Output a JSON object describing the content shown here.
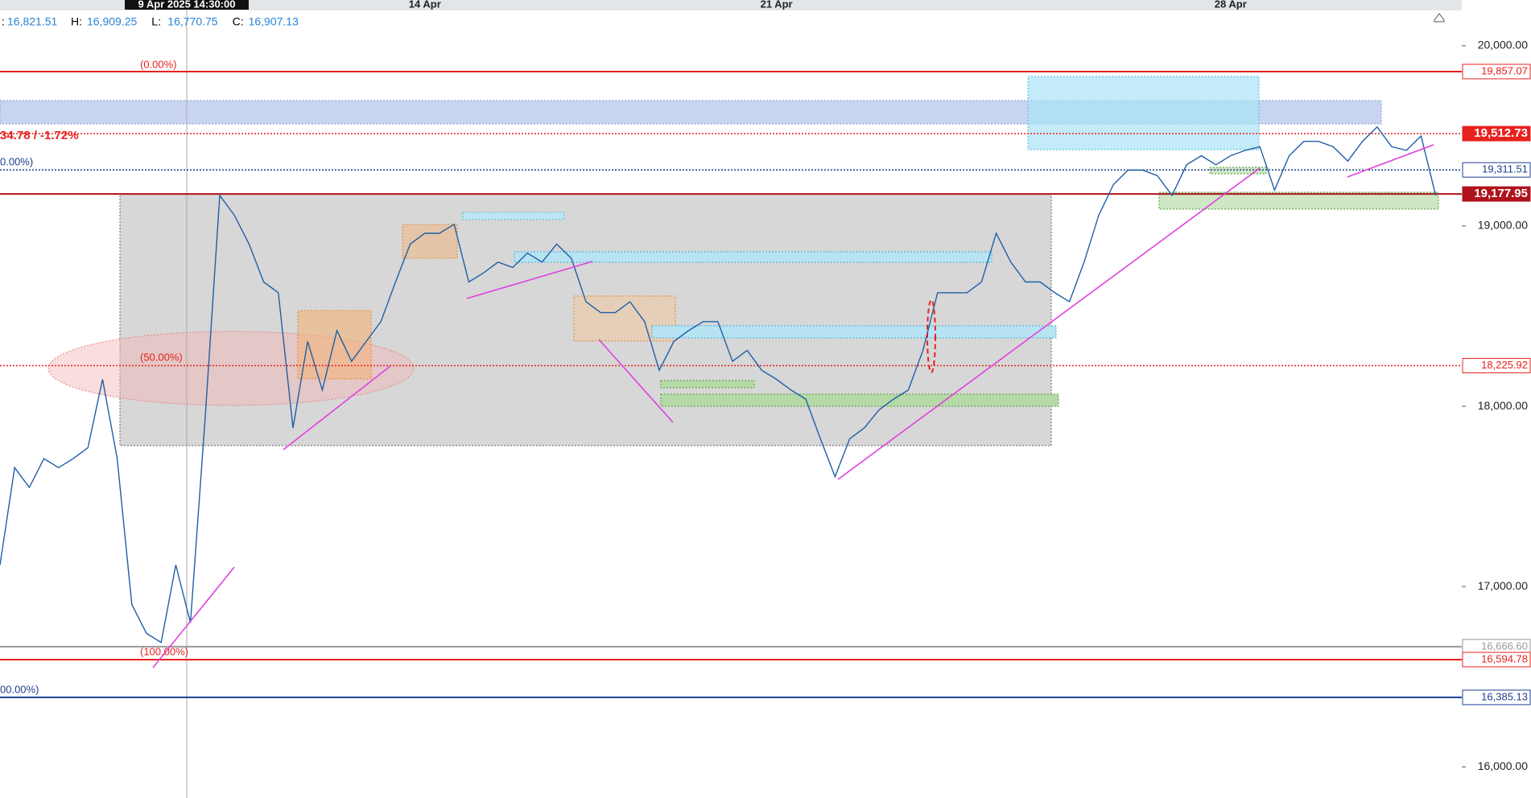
{
  "chart_data": {
    "type": "line",
    "crosshair_date": "9 Apr 2025 14:30:00",
    "ohlc": [
      {
        "label": "H:",
        "value": "16,909.25"
      },
      {
        "label": "L:",
        "value": "16,770.75"
      },
      {
        "label": "C:",
        "value": "16,907.13"
      }
    ],
    "open_value": "16,821.51",
    "categories": [
      null,
      null,
      null,
      null,
      null,
      null,
      null,
      null,
      null,
      null,
      null,
      null,
      null,
      null,
      null,
      null,
      null,
      null,
      null,
      null,
      null,
      null,
      null,
      null,
      null,
      null,
      null,
      null,
      null,
      "14 Apr",
      null,
      null,
      null,
      null,
      null,
      null,
      null,
      null,
      null,
      null,
      null,
      null,
      null,
      null,
      null,
      null,
      null,
      null,
      null,
      null,
      null,
      null,
      null,
      "21 Apr",
      null,
      null,
      null,
      null,
      null,
      null,
      null,
      null,
      null,
      null,
      null,
      null,
      null,
      null,
      null,
      null,
      null,
      null,
      null,
      null,
      null,
      null,
      null,
      null,
      null,
      null,
      null,
      null,
      null,
      null,
      "28 Apr",
      null,
      null,
      null,
      null,
      null,
      null,
      null,
      null,
      null,
      null,
      null,
      null,
      null,
      null
    ],
    "series": [
      {
        "color": "#1f5fa6",
        "values": [
          17120,
          17660,
          17550,
          17710,
          17660,
          17710,
          17770,
          18150,
          17710,
          16900,
          16740,
          16690,
          17120,
          16800,
          17930,
          19170,
          19060,
          18900,
          18690,
          18630,
          17880,
          18360,
          18090,
          18420,
          18250,
          18360,
          18470,
          18690,
          18900,
          18960,
          18960,
          19010,
          18690,
          18740,
          18800,
          18770,
          18850,
          18800,
          18900,
          18820,
          18580,
          18520,
          18520,
          18580,
          18470,
          18200,
          18360,
          18420,
          18470,
          18470,
          18250,
          18310,
          18200,
          18150,
          18090,
          18040,
          17820,
          17610,
          17820,
          17880,
          17980,
          18040,
          18090,
          18310,
          18630,
          18630,
          18630,
          18690,
          18960,
          18800,
          18690,
          18690,
          18630,
          18580,
          18800,
          19060,
          19230,
          19310,
          19310,
          19280,
          19170,
          19340,
          19390,
          19340,
          19390,
          19420,
          19440,
          19200,
          19390,
          19470,
          19470,
          19440,
          19360,
          19470,
          19550,
          19440,
          19420,
          19500,
          19170
        ]
      }
    ],
    "ylim": [
      15827,
      20254
    ],
    "yticks": [
      {
        "value": 16000,
        "label": "16,000.00"
      },
      {
        "value": 17000,
        "label": "17,000.00"
      },
      {
        "value": 18000,
        "label": "18,000.00"
      },
      {
        "value": 19000,
        "label": "19,000.00"
      },
      {
        "value": 20000,
        "label": "20,000.00"
      }
    ],
    "levels": [
      {
        "value": 19857.07,
        "label": "19,857.07",
        "color": "#e8211d",
        "line_style": "solid",
        "label_fill": false
      },
      {
        "value": 19512.73,
        "label": "19,512.73",
        "color": "#e8211d",
        "line_style": "dotted",
        "label_fill": true
      },
      {
        "value": 19311.51,
        "label": "19,311.51",
        "color": "#1a3f8f",
        "line_style": "dotted",
        "label_fill": false
      },
      {
        "value": 19177.95,
        "label": "19,177.95",
        "color": "#b0121b",
        "line_style": "solid",
        "label_fill": true
      },
      {
        "value": 18225.92,
        "label": "18,225.92",
        "color": "#e8211d",
        "line_style": "dotted",
        "label_fill": false
      },
      {
        "value": 16666.6,
        "label": "16,666.60",
        "color": "#999999",
        "line_style": "solid",
        "label_fill": false
      },
      {
        "value": 16594.78,
        "label": "16,594.78",
        "color": "#e8211d",
        "line_style": "solid",
        "label_fill": false
      },
      {
        "value": 16385.13,
        "label": "16,385.13",
        "color": "#1a3f8f",
        "line_style": "solid",
        "label_fill": false
      }
    ],
    "annotations": [
      "(0.00%)",
      "34.78 / -1.72%",
      "0.00%)",
      "(50.00%)",
      "(100.00%)",
      "00.00%)"
    ]
  }
}
